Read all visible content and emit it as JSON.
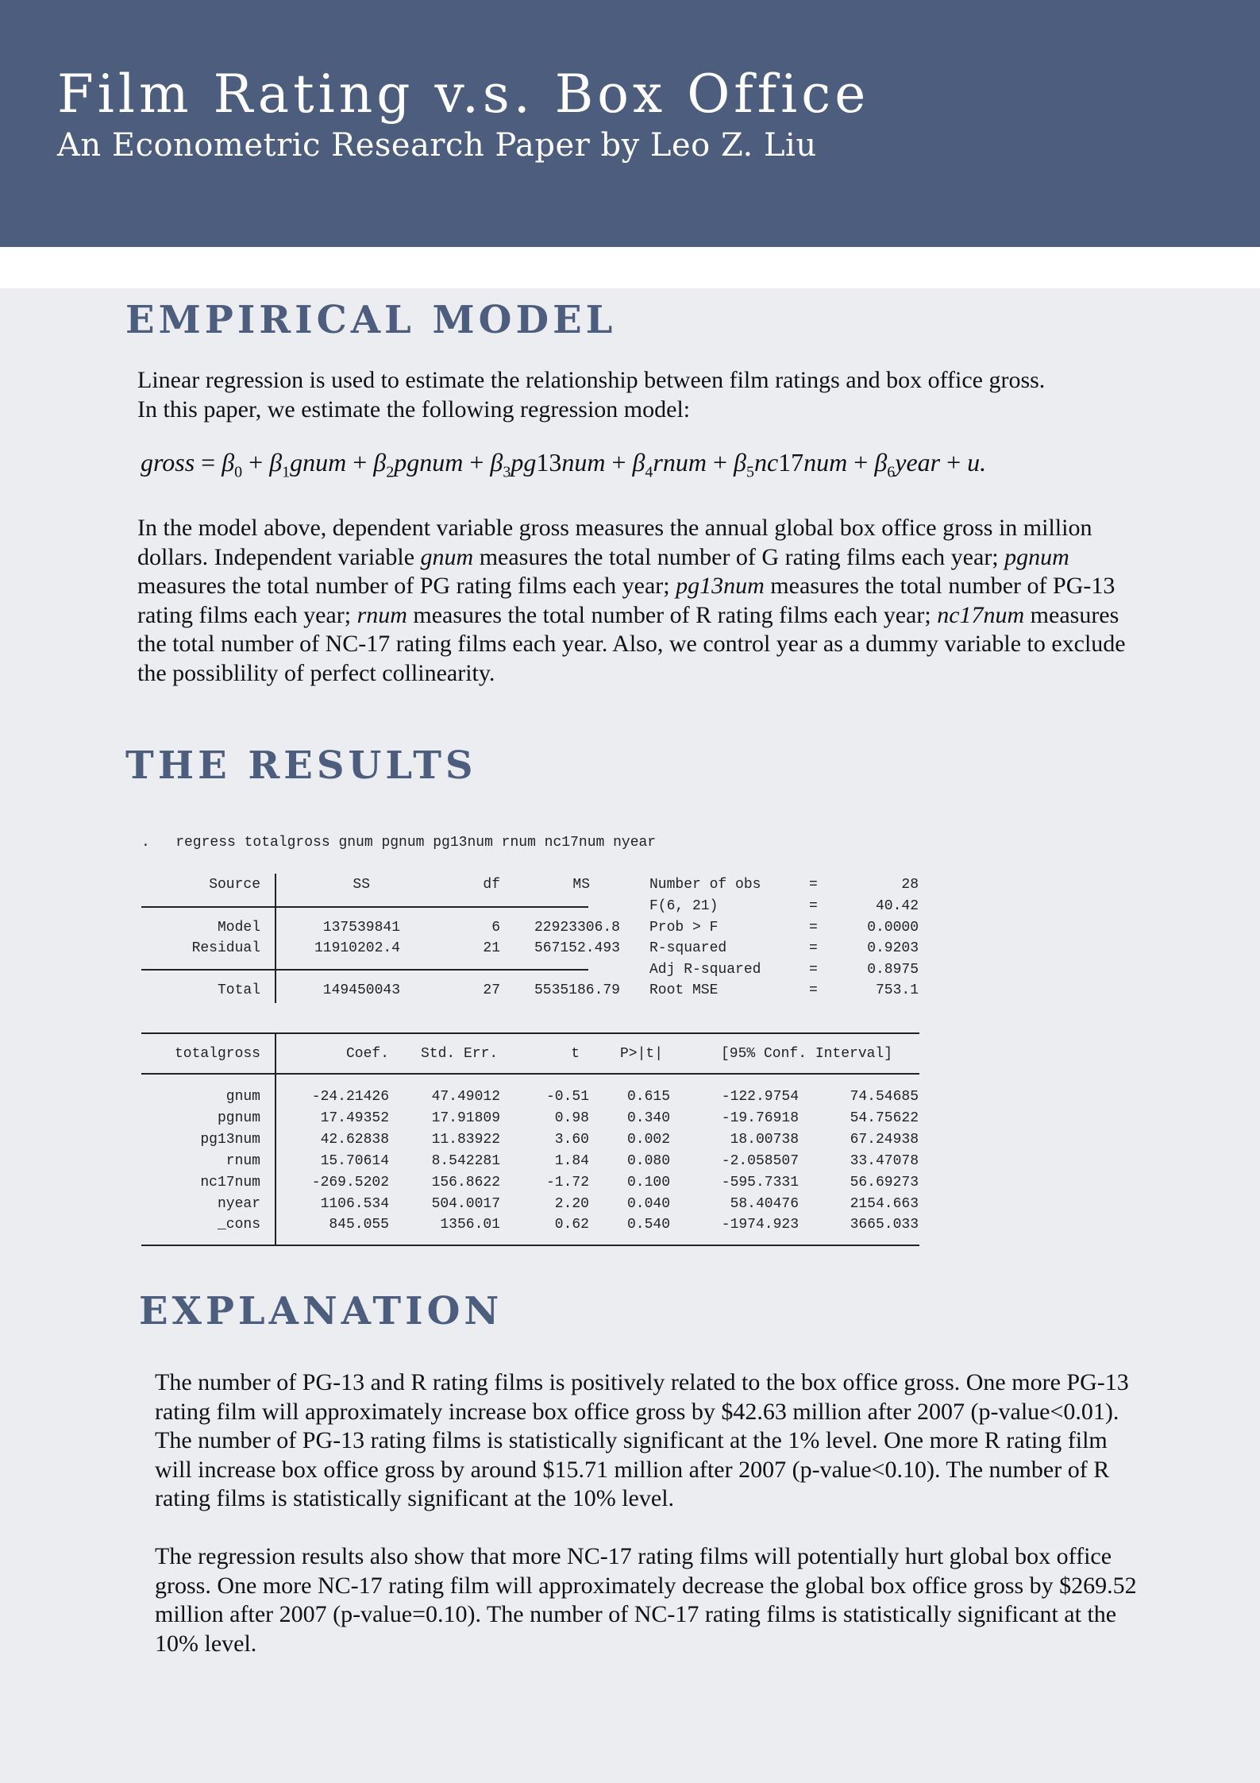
{
  "header": {
    "title": "Film Rating v.s. Box Office",
    "subtitle": "An Econometric Research Paper by Leo Z. Liu"
  },
  "sections": {
    "model": {
      "heading": "EMPIRICAL MODEL",
      "intro_line1": "Linear regression is used to estimate the relationship between film ratings and box office gross.",
      "intro_line2": "In this paper, we estimate the following regression model:",
      "desc": {
        "p1": "In the model above, dependent variable gross measures the annual global box office gross in million dollars. Independent variable ",
        "v1": "gnum",
        "p2": " measures the total number of G rating films each year; ",
        "v2": "pgnum",
        "p3": " measures the total number of PG rating films each year; ",
        "v3": "pg13num",
        "p4": " measures the total number of PG-13 rating films each year; ",
        "v4": "rnum",
        "p5": " measures the total number of R rating films each year; ",
        "v5": "nc17num",
        "p6": " measures the total number of NC-17 rating films each year. Also, we control year as a dummy variable to exclude the possiblility of perfect collinearity."
      }
    },
    "results": {
      "heading": "THE RESULTS"
    },
    "explanation": {
      "heading": "EXPLANATION",
      "para1": "The number of PG-13 and R rating films is positively related to the box office gross. One more PG-13 rating film will approximately increase box office gross by $42.63 million after 2007 (p-value<0.01). The number of PG-13 rating films is statistically significant at the 1% level. One more R rating film will increase box office gross by around $15.71 million after 2007 (p-value<0.10). The number of R rating films is statistically significant at the 10% level.",
      "para2": "The regression results also show that more NC-17 rating films will potentially hurt global box office gross. One more NC-17 rating film will approximately decrease the global box office gross by $269.52 million after 2007 (p-value=0.10). The number of NC-17 rating films is statistically significant at the 10% level."
    }
  },
  "regression": {
    "command": ".   regress totalgross gnum pgnum pg13num rnum nc17num nyear",
    "anova_headers": [
      "Source",
      "SS",
      "df",
      "MS"
    ],
    "anova_rows": [
      [
        "Model",
        "137539841",
        "6",
        "22923306.8"
      ],
      [
        "Residual",
        "11910202.4",
        "21",
        "567152.493"
      ],
      [
        "Total",
        "149450043",
        "27",
        "5535186.79"
      ]
    ],
    "stats": [
      [
        "Number of obs",
        "=",
        "28"
      ],
      [
        "F(6, 21)",
        "=",
        "40.42"
      ],
      [
        "Prob > F",
        "=",
        "0.0000"
      ],
      [
        "R-squared",
        "=",
        "0.9203"
      ],
      [
        "Adj R-squared",
        "=",
        "0.8975"
      ],
      [
        "Root MSE",
        "=",
        "753.1"
      ]
    ],
    "coef_headers": [
      "totalgross",
      "Coef.",
      "Std. Err.",
      "t",
      "P>|t|",
      "[95% Conf. Interval]"
    ],
    "coef_rows": [
      [
        "gnum",
        "-24.21426",
        "47.49012",
        "-0.51",
        "0.615",
        "-122.9754",
        "74.54685"
      ],
      [
        "pgnum",
        "17.49352",
        "17.91809",
        "0.98",
        "0.340",
        "-19.76918",
        "54.75622"
      ],
      [
        "pg13num",
        "42.62838",
        "11.83922",
        "3.60",
        "0.002",
        "18.00738",
        "67.24938"
      ],
      [
        "rnum",
        "15.70614",
        "8.542281",
        "1.84",
        "0.080",
        "-2.058507",
        "33.47078"
      ],
      [
        "nc17num",
        "-269.5202",
        "156.8622",
        "-1.72",
        "0.100",
        "-595.7331",
        "56.69273"
      ],
      [
        "nyear",
        "1106.534",
        "504.0017",
        "2.20",
        "0.040",
        "58.40476",
        "2154.663"
      ],
      [
        "_cons",
        "845.055",
        "1356.01",
        "0.62",
        "0.540",
        "-1974.923",
        "3665.033"
      ]
    ]
  }
}
